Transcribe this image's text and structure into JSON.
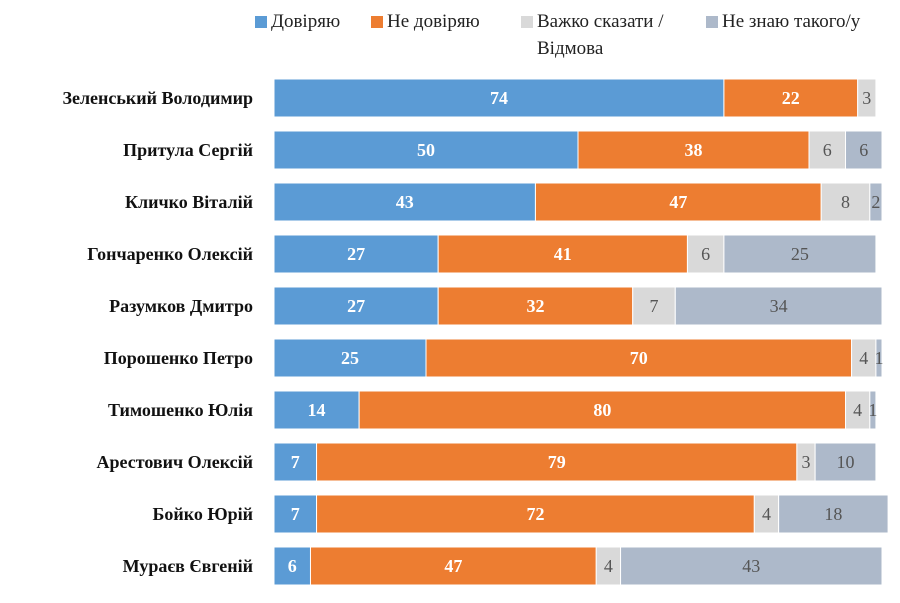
{
  "chart_data": {
    "type": "bar",
    "orientation": "horizontal",
    "stacked": true,
    "xlim": [
      0,
      100
    ],
    "grid": false,
    "legend_position": "top",
    "categories": [
      "Зеленський Володимир",
      "Притула Сергій",
      "Кличко Віталій",
      "Гончаренко Олексій",
      "Разумков Дмитро",
      "Порошенко Петро",
      "Тимошенко Юлія",
      "Арестович Олексій",
      "Бойко Юрій",
      "Мураєв Євгеній"
    ],
    "series": [
      {
        "name": "Довіряю",
        "color": "#5b9bd5",
        "label_color": "#ffffff",
        "label_bold": true,
        "values": [
          74,
          50,
          43,
          27,
          27,
          25,
          14,
          7,
          7,
          6
        ]
      },
      {
        "name": "Не довіряю",
        "color": "#ed7d31",
        "label_color": "#ffffff",
        "label_bold": true,
        "values": [
          22,
          38,
          47,
          41,
          32,
          70,
          80,
          79,
          72,
          47
        ]
      },
      {
        "name": "Важко сказати /\nВідмова",
        "color": "#d9d9d9",
        "label_color": "#555555",
        "label_bold": false,
        "values": [
          3,
          6,
          8,
          6,
          7,
          4,
          4,
          3,
          4,
          4
        ]
      },
      {
        "name": "Не знаю такого/у",
        "color": "#adb9ca",
        "label_color": "#555555",
        "label_bold": false,
        "values": [
          0,
          6,
          2,
          25,
          34,
          1,
          1,
          10,
          18,
          43
        ]
      }
    ],
    "point_labels": [
      [
        "74",
        "50",
        "43",
        "27",
        "27",
        "25",
        "14",
        "7",
        "7",
        "6"
      ],
      [
        "22",
        "38",
        "47",
        "41",
        "32",
        "70",
        "80",
        "79",
        "72",
        "47"
      ],
      [
        "3",
        "6",
        "8",
        "6",
        "7",
        "4",
        "4",
        "3",
        "4",
        "4"
      ],
      [
        "",
        "6",
        "2",
        "25",
        "34",
        "1",
        "1",
        "10",
        "18",
        "43"
      ]
    ]
  }
}
